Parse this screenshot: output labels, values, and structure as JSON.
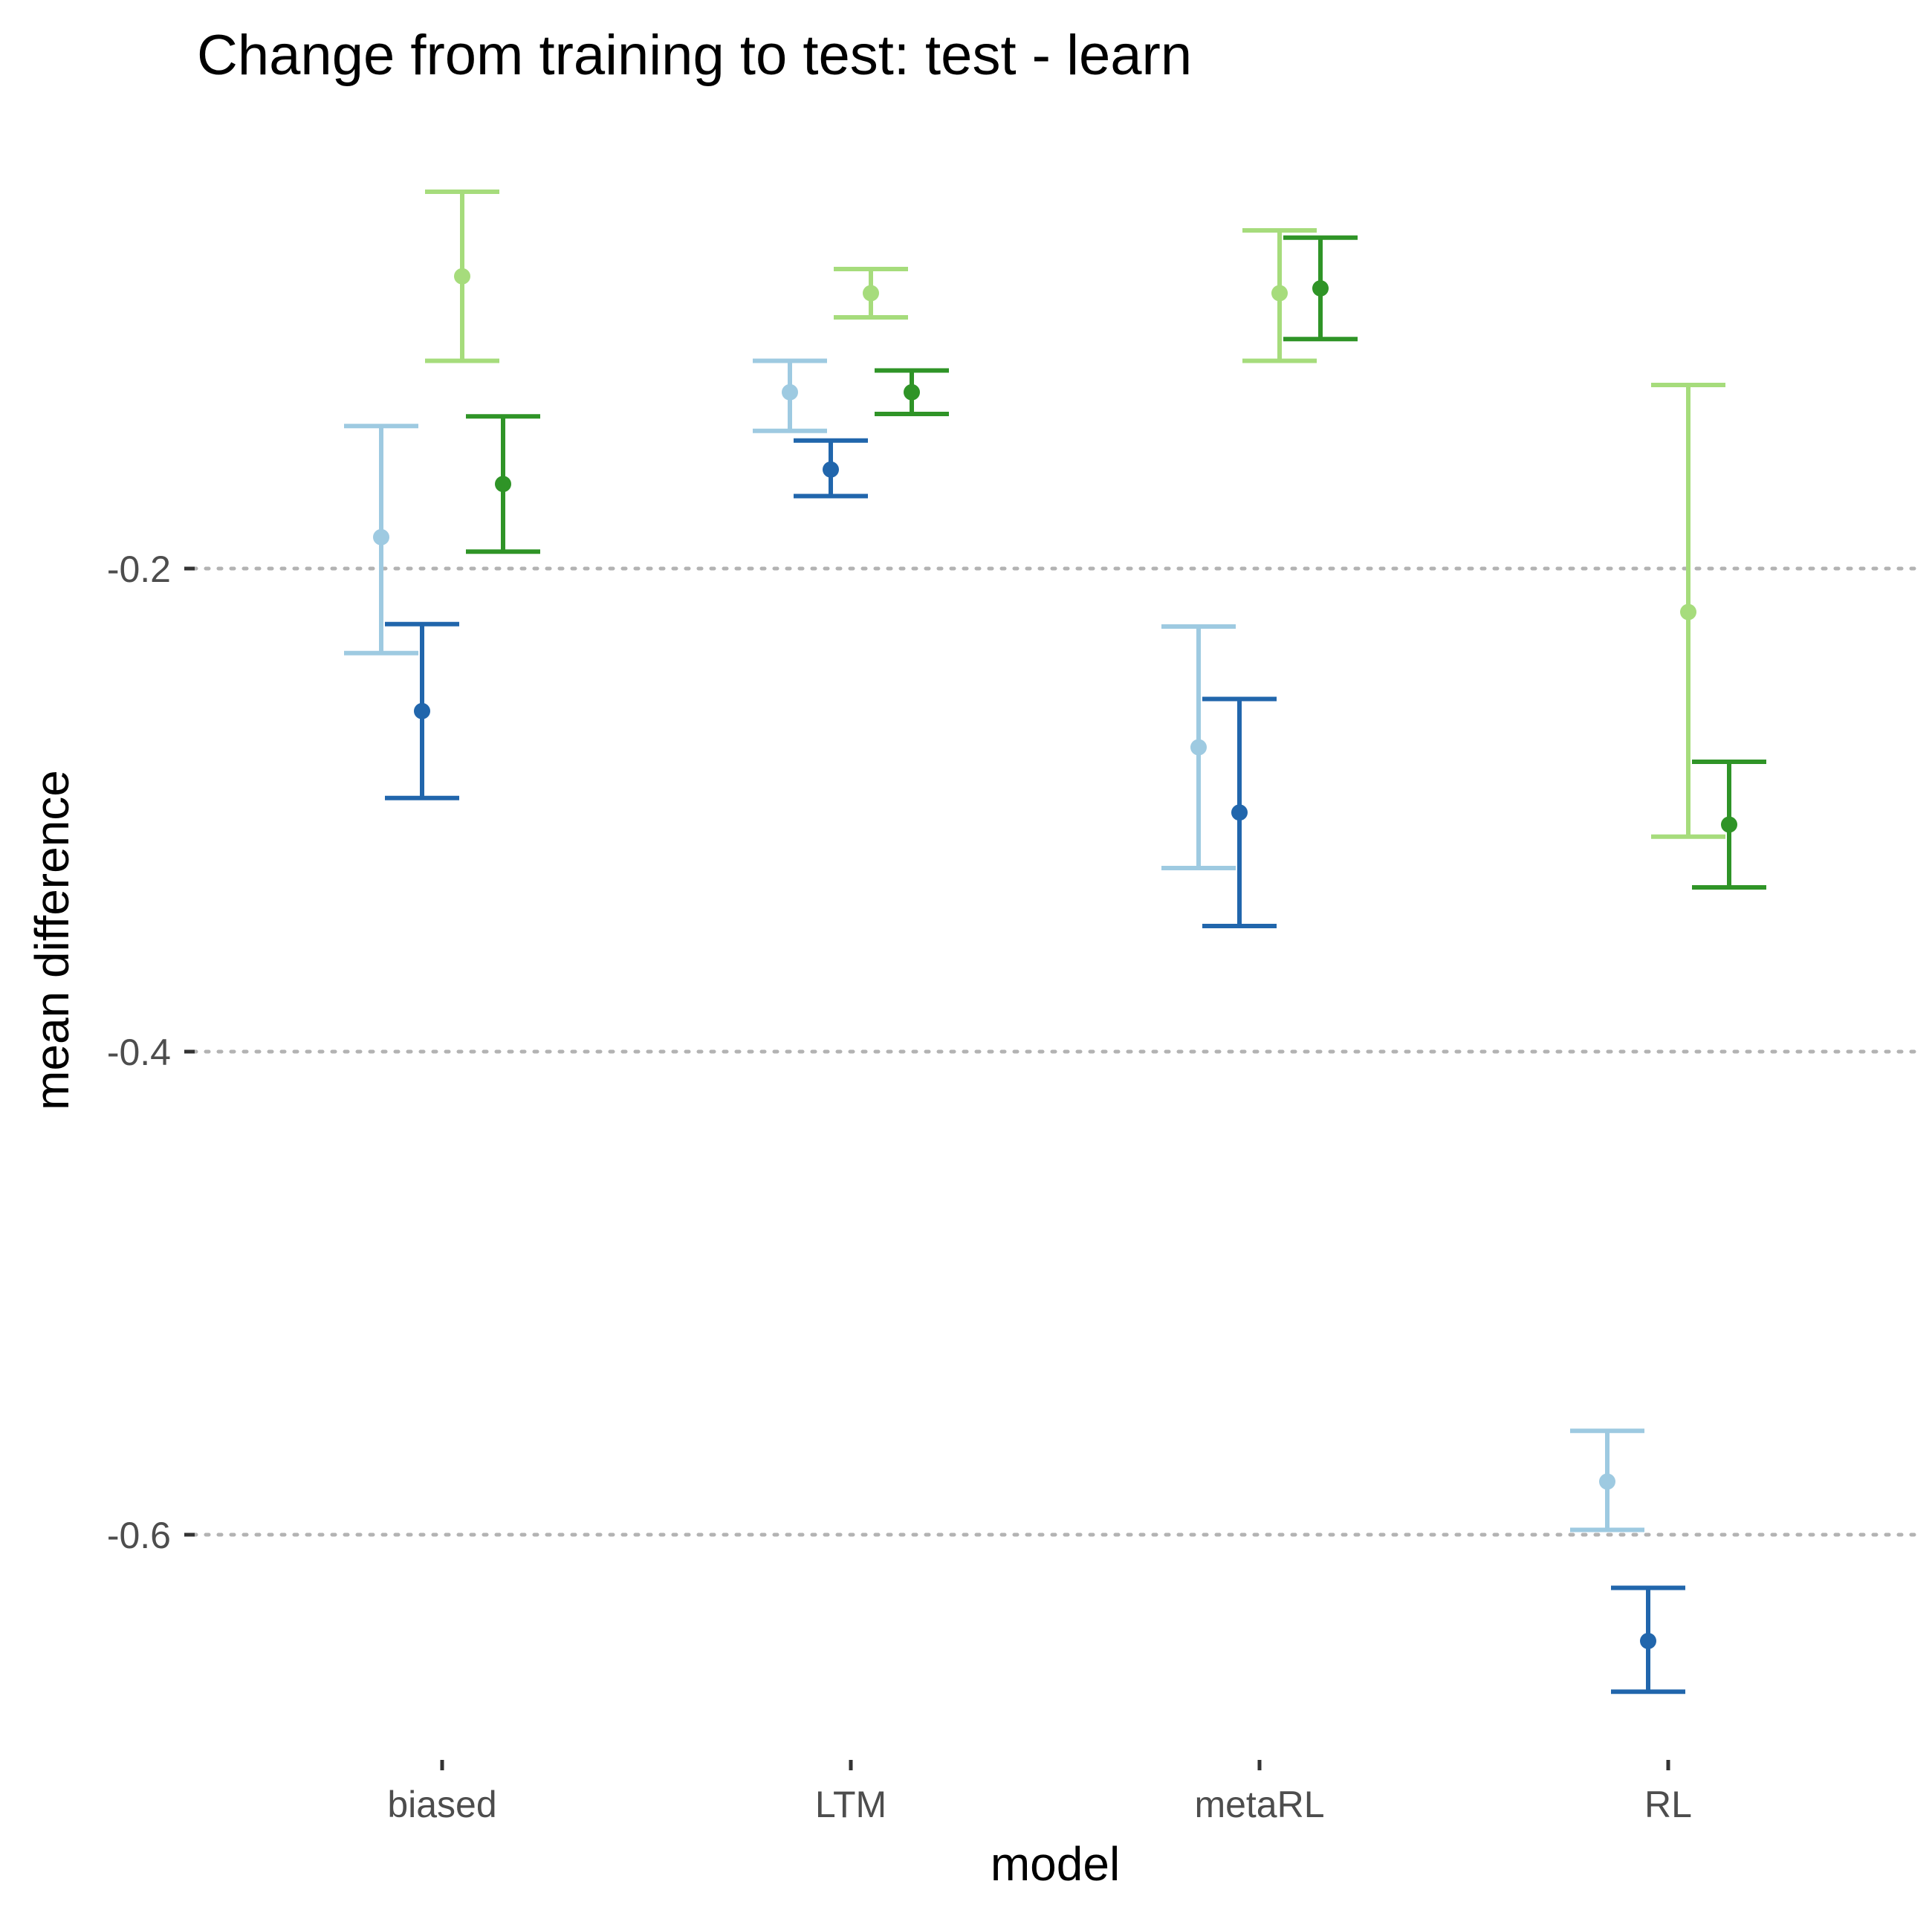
{
  "chart_data": {
    "type": "errorbar",
    "title": "Change from training to test: test - learn",
    "xlabel": "model",
    "ylabel": "mean difference",
    "categories": [
      "biased",
      "LTM",
      "metaRL",
      "RL"
    ],
    "yticks": [
      -0.2,
      -0.4,
      -0.6
    ],
    "ytick_labels": [
      "-0.2",
      "-0.4",
      "-0.6"
    ],
    "ylim": [
      -0.7,
      -0.04
    ],
    "grid": "horizontal dotted at y ticks",
    "legend": "none",
    "series": [
      {
        "color": "#9ecae1",
        "mean": [
          -0.187,
          -0.127,
          -0.274,
          -0.578
        ],
        "lower": [
          -0.235,
          -0.143,
          -0.324,
          -0.598
        ],
        "upper": [
          -0.141,
          -0.114,
          -0.224,
          -0.557
        ]
      },
      {
        "color": "#2166ac",
        "mean": [
          -0.259,
          -0.159,
          -0.301,
          -0.644
        ],
        "lower": [
          -0.295,
          -0.17,
          -0.348,
          -0.665
        ],
        "upper": [
          -0.223,
          -0.147,
          -0.254,
          -0.622
        ]
      },
      {
        "color": "#a6dc7c",
        "mean": [
          -0.079,
          -0.086,
          -0.086,
          -0.218
        ],
        "lower": [
          -0.114,
          -0.096,
          -0.114,
          -0.311
        ],
        "upper": [
          -0.044,
          -0.076,
          -0.06,
          -0.124
        ]
      },
      {
        "color": "#2f9427",
        "mean": [
          -0.165,
          -0.127,
          -0.084,
          -0.306
        ],
        "lower": [
          -0.193,
          -0.136,
          -0.105,
          -0.332
        ],
        "upper": [
          -0.137,
          -0.118,
          -0.063,
          -0.28
        ]
      }
    ]
  }
}
